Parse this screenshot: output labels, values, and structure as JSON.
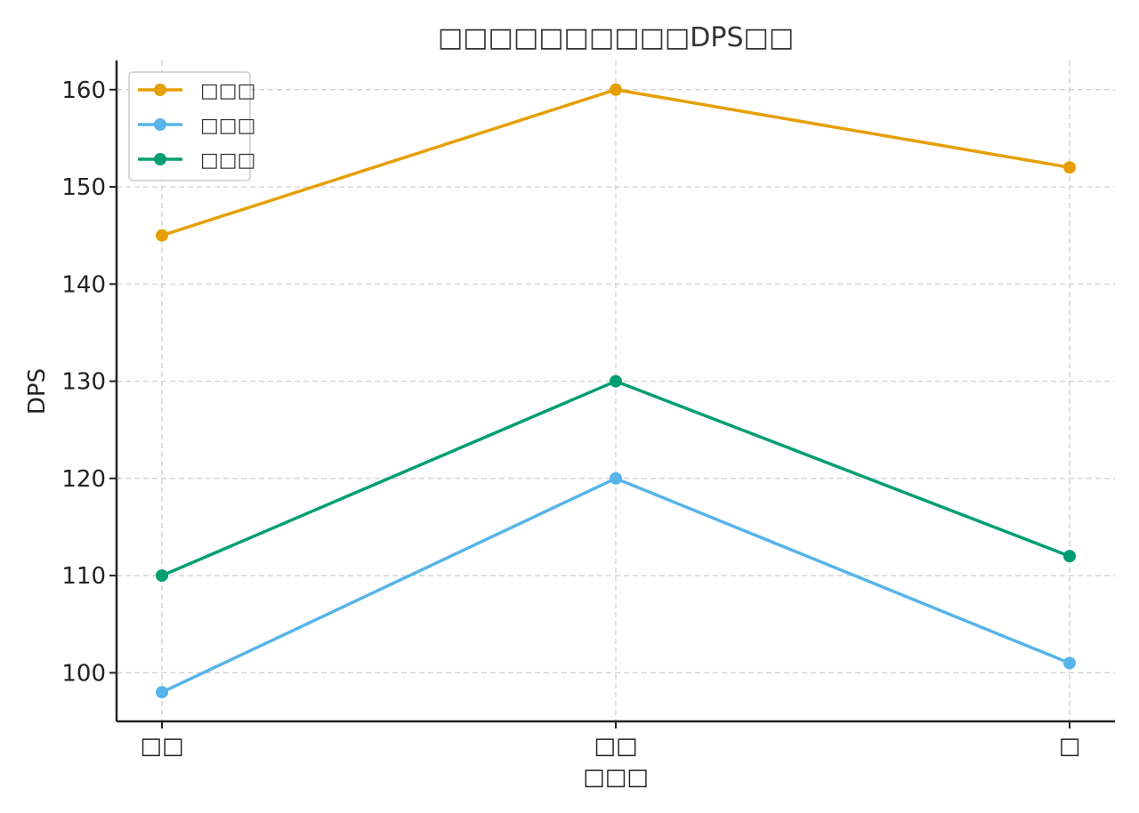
{
  "chart_data": {
    "type": "line",
    "title": "□□□□□□□□□□DPS□□",
    "xlabel": "□□□",
    "ylabel": "DPS",
    "categories": [
      "□□",
      "□□",
      "□"
    ],
    "ylim": [
      95,
      163
    ],
    "yticks": [
      100,
      110,
      120,
      130,
      140,
      150,
      160
    ],
    "grid": true,
    "legend_position": "top-left",
    "series": [
      {
        "name": "□□□",
        "color": "#E69F00",
        "values": [
          145,
          160,
          152
        ]
      },
      {
        "name": "□□□",
        "color": "#56B4E9",
        "values": [
          98,
          120,
          101
        ]
      },
      {
        "name": "□□□",
        "color": "#009E73",
        "values": [
          110,
          130,
          112
        ]
      }
    ]
  }
}
